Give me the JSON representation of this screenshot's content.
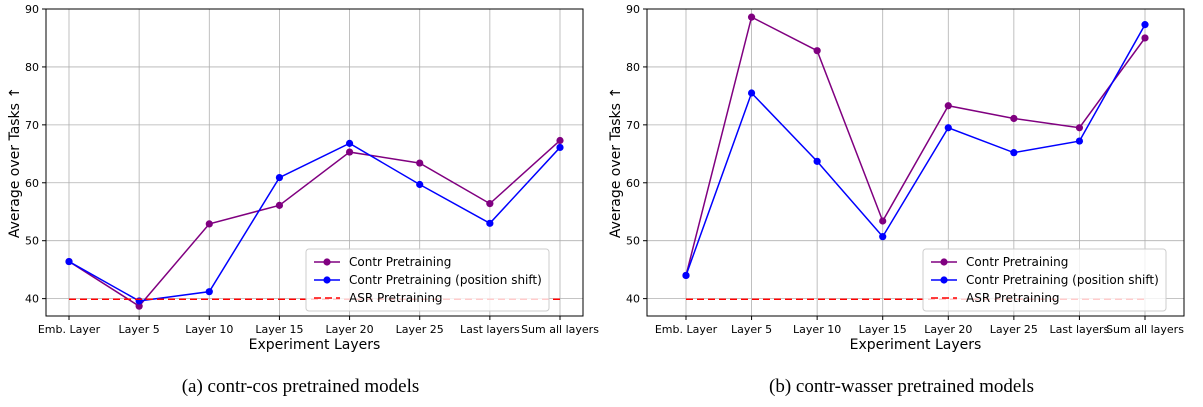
{
  "chart_data": [
    {
      "type": "line",
      "caption": "(a) contr-cos pretrained models",
      "xlabel": "Experiment Layers",
      "ylabel": "Average over Tasks ↑",
      "ylim": [
        37,
        90
      ],
      "yticks": [
        40,
        50,
        60,
        70,
        80,
        90
      ],
      "grid": true,
      "legend_position": "bottom-right",
      "categories": [
        "Emb. Layer",
        "Layer 5",
        "Layer 10",
        "Layer 15",
        "Layer 20",
        "Layer 25",
        "Last layers",
        "Sum all layers"
      ],
      "series": [
        {
          "name": "Contr Pretraining",
          "color": "#800080",
          "style": "solid-marker",
          "values": [
            46.4,
            38.7,
            52.9,
            56.1,
            65.3,
            63.4,
            56.4,
            67.3
          ]
        },
        {
          "name": "Contr Pretraining (position shift)",
          "color": "#0000ff",
          "style": "solid-marker",
          "values": [
            46.4,
            39.6,
            41.2,
            60.9,
            66.8,
            59.7,
            53.0,
            66.1
          ]
        },
        {
          "name": "ASR Pretraining",
          "color": "#ff0000",
          "style": "dashed",
          "values": [
            39.9,
            39.9,
            39.9,
            39.9,
            39.9,
            39.9,
            39.9,
            39.9
          ]
        }
      ]
    },
    {
      "type": "line",
      "caption": "(b) contr-wasser pretrained models",
      "xlabel": "Experiment Layers",
      "ylabel": "Average over Tasks ↑",
      "ylim": [
        37,
        90
      ],
      "yticks": [
        40,
        50,
        60,
        70,
        80,
        90
      ],
      "grid": true,
      "legend_position": "bottom-right",
      "categories": [
        "Emb. Layer",
        "Layer 5",
        "Layer 10",
        "Layer 15",
        "Layer 20",
        "Layer 25",
        "Last layers",
        "Sum all layers"
      ],
      "series": [
        {
          "name": "Contr Pretraining",
          "color": "#800080",
          "style": "solid-marker",
          "values": [
            44.0,
            88.6,
            82.8,
            53.4,
            73.3,
            71.1,
            69.5,
            85.0
          ]
        },
        {
          "name": "Contr Pretraining (position shift)",
          "color": "#0000ff",
          "style": "solid-marker",
          "values": [
            44.0,
            75.5,
            63.7,
            50.7,
            69.5,
            65.2,
            67.2,
            87.3
          ]
        },
        {
          "name": "ASR Pretraining",
          "color": "#ff0000",
          "style": "dashed",
          "values": [
            39.9,
            39.9,
            39.9,
            39.9,
            39.9,
            39.9,
            39.9,
            39.9
          ]
        }
      ]
    }
  ]
}
